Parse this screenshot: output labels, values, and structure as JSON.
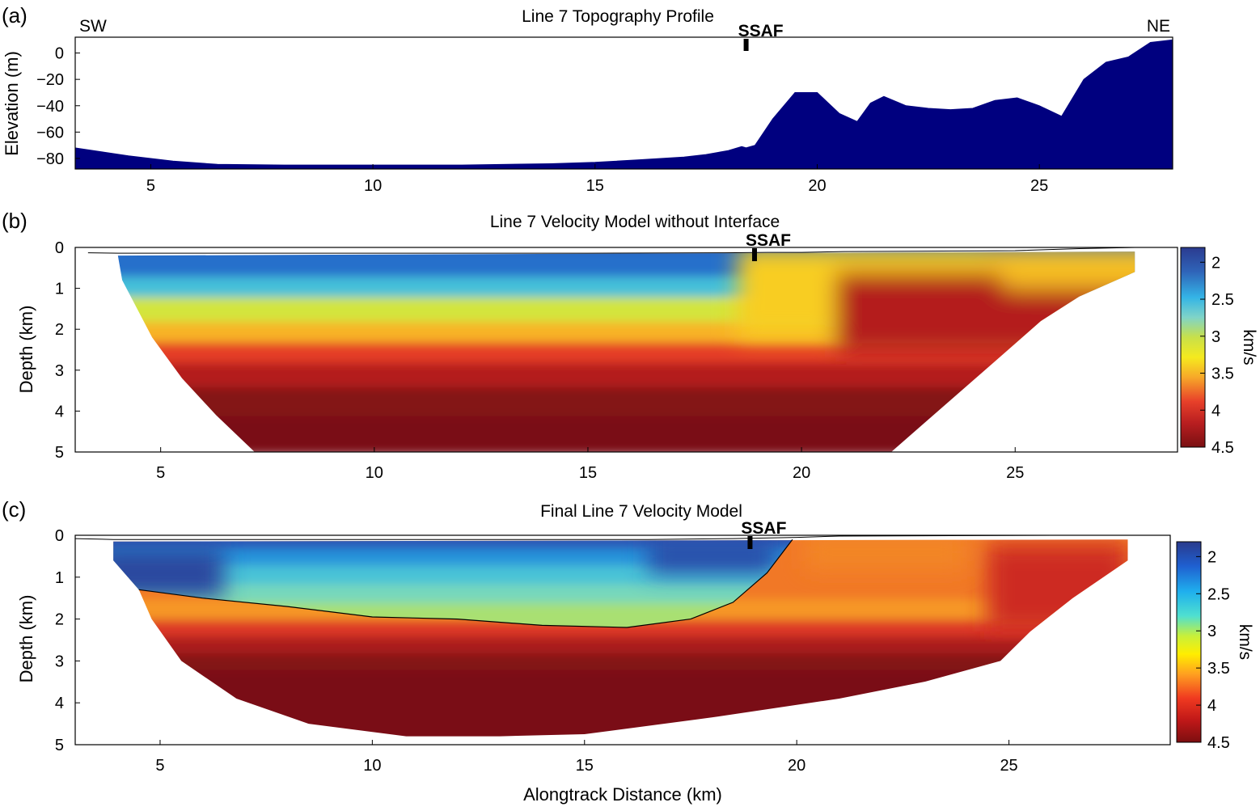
{
  "chart_data": [
    {
      "panel": "(a)",
      "type": "area",
      "title": "Line 7 Topography Profile",
      "xlabel": "",
      "ylabel": "Elevation (m)",
      "xlim": [
        3.3,
        28.0
      ],
      "ylim": [
        -88,
        12
      ],
      "xticks": [
        5,
        10,
        15,
        20,
        25
      ],
      "yticks": [
        0,
        -20,
        -40,
        -60,
        -80
      ],
      "left_label": "SW",
      "right_label": "NE",
      "fault": {
        "label": "SSAF",
        "x": 18.4
      },
      "color": "#00007f",
      "x": [
        3.3,
        4.5,
        5.5,
        6.5,
        8,
        10,
        12,
        14,
        15,
        16,
        17,
        17.5,
        18,
        18.3,
        18.4,
        18.6,
        19.0,
        19.5,
        20.0,
        20.5,
        20.9,
        21.2,
        21.5,
        22.0,
        22.5,
        23.0,
        23.5,
        24.0,
        24.5,
        25.0,
        25.5,
        26.0,
        26.5,
        27.0,
        27.5,
        28.0
      ],
      "values": [
        -72,
        -78,
        -82,
        -84.5,
        -85,
        -85,
        -85,
        -84,
        -83,
        -81,
        -79,
        -77,
        -74,
        -71,
        -72,
        -70,
        -50,
        -30,
        -30,
        -46,
        -52,
        -38,
        -33,
        -40,
        -42,
        -43,
        -42,
        -36,
        -34,
        -40,
        -48,
        -20,
        -7,
        -3,
        8,
        10
      ]
    },
    {
      "panel": "(b)",
      "type": "heatmap",
      "title": "Line 7 Velocity Model without Interface",
      "xlabel": "",
      "ylabel": "Depth (km)",
      "xlim": [
        3.0,
        28.8
      ],
      "ylim": [
        5,
        0
      ],
      "xticks": [
        5,
        10,
        15,
        20,
        25
      ],
      "yticks": [
        0,
        1,
        2,
        3,
        4,
        5
      ],
      "fault": {
        "label": "SSAF",
        "x": 18.9
      },
      "colorbar": {
        "label": "km/s",
        "ticks": [
          "2",
          "2.5",
          "3",
          "3.5",
          "4",
          "4.5"
        ],
        "range": [
          1.8,
          4.5
        ]
      },
      "coverage_left": [
        [
          4.0,
          0.2
        ],
        [
          4.1,
          0.8
        ],
        [
          4.8,
          2.2
        ],
        [
          5.5,
          3.2
        ],
        [
          6.3,
          4.1
        ],
        [
          7.2,
          5.0
        ]
      ],
      "coverage_right": [
        [
          27.8,
          0.1
        ],
        [
          27.8,
          0.6
        ],
        [
          26.5,
          1.2
        ],
        [
          25.6,
          1.8
        ],
        [
          24.4,
          2.9
        ],
        [
          22.1,
          5.0
        ]
      ],
      "layers": [
        {
          "depth": 0.15,
          "velocity": 2.0
        },
        {
          "depth": 0.8,
          "velocity": 2.2
        },
        {
          "depth": 1.3,
          "velocity": 2.6
        },
        {
          "depth": 1.9,
          "velocity": 3.1
        },
        {
          "depth": 2.4,
          "velocity": 3.5
        },
        {
          "depth": 2.9,
          "velocity": 3.9
        },
        {
          "depth": 3.5,
          "velocity": 4.2
        },
        {
          "depth": 4.2,
          "velocity": 4.45
        },
        {
          "depth": 5.0,
          "velocity": 4.5
        }
      ],
      "ne_gradient": {
        "x_start": 18.5,
        "x_end": 20.8,
        "shallow_velocity": 3.4,
        "deep_velocity": 4.2
      }
    },
    {
      "panel": "(c)",
      "type": "heatmap",
      "title": "Final Line 7 Velocity Model",
      "xlabel": "Alongtrack Distance (km)",
      "ylabel": "Depth (km)",
      "xlim": [
        3.0,
        28.8
      ],
      "ylim": [
        5,
        0
      ],
      "xticks": [
        5,
        10,
        15,
        20,
        25
      ],
      "yticks": [
        0,
        1,
        2,
        3,
        4,
        5
      ],
      "fault": {
        "label": "SSAF",
        "x": 18.9
      },
      "colorbar": {
        "label": "km/s",
        "ticks": [
          "2",
          "2.5",
          "3",
          "3.5",
          "4",
          "4.5"
        ],
        "range": [
          1.8,
          4.5
        ]
      },
      "coverage_left": [
        [
          3.9,
          0.15
        ],
        [
          3.9,
          0.6
        ],
        [
          4.5,
          1.3
        ],
        [
          4.8,
          2.0
        ],
        [
          5.5,
          3.0
        ],
        [
          6.8,
          3.9
        ],
        [
          8.5,
          4.5
        ],
        [
          10.8,
          4.8
        ],
        [
          13,
          4.8
        ]
      ],
      "coverage_right": [
        [
          27.8,
          0.1
        ],
        [
          27.8,
          0.6
        ],
        [
          26.5,
          1.5
        ],
        [
          25.5,
          2.3
        ],
        [
          24.8,
          3.0
        ],
        [
          23,
          3.5
        ],
        [
          21,
          3.9
        ],
        [
          18,
          4.35
        ],
        [
          15,
          4.75
        ],
        [
          13,
          4.8
        ]
      ],
      "basin_interface": [
        [
          4.5,
          1.3
        ],
        [
          6,
          1.5
        ],
        [
          8,
          1.7
        ],
        [
          10,
          1.95
        ],
        [
          12,
          2.0
        ],
        [
          14,
          2.15
        ],
        [
          16,
          2.2
        ],
        [
          17.5,
          2.0
        ],
        [
          18.5,
          1.6
        ],
        [
          19.3,
          0.9
        ],
        [
          19.9,
          0.1
        ]
      ],
      "basin_velocities": {
        "shallow": 2.1,
        "deep": 3.0
      },
      "basement_velocities": {
        "shallow": 3.6,
        "deep": 4.5
      }
    }
  ]
}
